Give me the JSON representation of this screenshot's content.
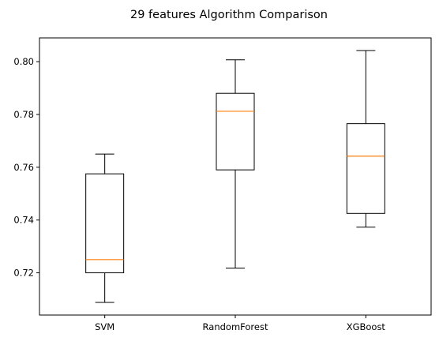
{
  "chart_data": {
    "type": "box",
    "title": "29 features Algorithm Comparison",
    "xlabel": "",
    "ylabel": "",
    "categories": [
      "SVM",
      "RandomForest",
      "XGBoost"
    ],
    "boxes": [
      {
        "whisker_low": 0.7088,
        "q1": 0.72,
        "median": 0.725,
        "q3": 0.7575,
        "whisker_high": 0.765
      },
      {
        "whisker_low": 0.7218,
        "q1": 0.759,
        "median": 0.7812,
        "q3": 0.788,
        "whisker_high": 0.8007
      },
      {
        "whisker_low": 0.7373,
        "q1": 0.7425,
        "median": 0.7642,
        "q3": 0.7765,
        "whisker_high": 0.8042
      }
    ],
    "ylim": [
      0.704,
      0.809
    ],
    "yticks": [
      0.72,
      0.74,
      0.76,
      0.78,
      0.8
    ],
    "ytick_labels": [
      "0.72",
      "0.74",
      "0.76",
      "0.78",
      "0.80"
    ],
    "grid": false,
    "colors": {
      "box": "#000000",
      "median": "#ff7f0e",
      "background": "#ffffff"
    }
  }
}
